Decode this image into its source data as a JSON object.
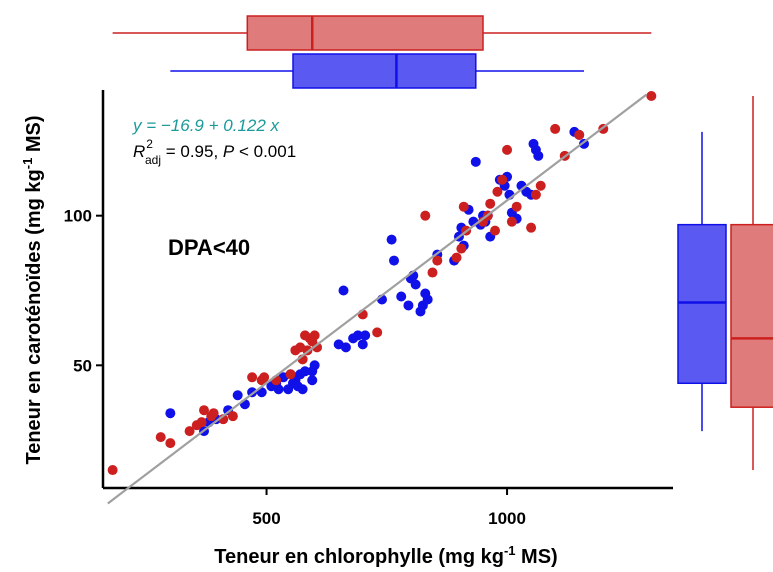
{
  "chart_data": {
    "type": "scatter",
    "xlabel": "Teneur en chlorophylle (mg kg-1 MS)",
    "ylabel": "Teneur en caroténoïdes (mg kg-1 MS)",
    "xlim": [
      160,
      1345
    ],
    "ylim": [
      9,
      142
    ],
    "xticks": [
      500,
      1000
    ],
    "yticks": [
      50,
      100
    ],
    "grid": false,
    "annotation": "DPA<40",
    "equation": "y = −16.9 + 0.122 x",
    "stats": {
      "r2_label": "R²adj = 0.95",
      "p_label": "P < 0.001"
    },
    "fit_line": {
      "intercept": -16.9,
      "slope": 0.122,
      "x_range": [
        170,
        1290
      ],
      "color": "#a0a0a0"
    },
    "series": [
      {
        "color": "#1010e8",
        "points": [
          [
            300,
            34
          ],
          [
            370,
            28
          ],
          [
            380,
            31
          ],
          [
            395,
            32
          ],
          [
            420,
            35
          ],
          [
            440,
            40
          ],
          [
            455,
            37
          ],
          [
            470,
            41
          ],
          [
            490,
            41
          ],
          [
            510,
            43
          ],
          [
            520,
            44
          ],
          [
            525,
            42
          ],
          [
            535,
            46
          ],
          [
            545,
            42
          ],
          [
            550,
            47
          ],
          [
            555,
            44
          ],
          [
            560,
            45
          ],
          [
            565,
            43
          ],
          [
            570,
            47
          ],
          [
            575,
            42
          ],
          [
            580,
            48
          ],
          [
            595,
            48
          ],
          [
            600,
            50
          ],
          [
            595,
            45
          ],
          [
            650,
            57
          ],
          [
            660,
            75
          ],
          [
            665,
            56
          ],
          [
            680,
            59
          ],
          [
            690,
            60
          ],
          [
            700,
            57
          ],
          [
            705,
            60
          ],
          [
            740,
            72
          ],
          [
            760,
            92
          ],
          [
            765,
            85
          ],
          [
            780,
            73
          ],
          [
            795,
            70
          ],
          [
            800,
            79
          ],
          [
            805,
            80
          ],
          [
            810,
            77
          ],
          [
            820,
            68
          ],
          [
            825,
            70
          ],
          [
            830,
            74
          ],
          [
            835,
            72
          ],
          [
            855,
            87
          ],
          [
            890,
            85
          ],
          [
            900,
            93
          ],
          [
            905,
            96
          ],
          [
            910,
            90
          ],
          [
            920,
            102
          ],
          [
            930,
            98
          ],
          [
            935,
            118
          ],
          [
            945,
            97
          ],
          [
            950,
            100
          ],
          [
            955,
            98
          ],
          [
            960,
            100
          ],
          [
            965,
            93
          ],
          [
            985,
            112
          ],
          [
            995,
            110
          ],
          [
            1000,
            113
          ],
          [
            1005,
            107
          ],
          [
            1010,
            101
          ],
          [
            1020,
            99
          ],
          [
            1030,
            110
          ],
          [
            1040,
            108
          ],
          [
            1050,
            107
          ],
          [
            1055,
            124
          ],
          [
            1060,
            122
          ],
          [
            1065,
            120
          ],
          [
            1140,
            128
          ],
          [
            1150,
            127
          ],
          [
            1160,
            124
          ]
        ]
      },
      {
        "color": "#cc2020",
        "points": [
          [
            180,
            15
          ],
          [
            280,
            26
          ],
          [
            300,
            24
          ],
          [
            340,
            28
          ],
          [
            355,
            30
          ],
          [
            365,
            31
          ],
          [
            370,
            35
          ],
          [
            385,
            33
          ],
          [
            390,
            34
          ],
          [
            410,
            32
          ],
          [
            430,
            33
          ],
          [
            470,
            46
          ],
          [
            490,
            45
          ],
          [
            495,
            46
          ],
          [
            520,
            45
          ],
          [
            550,
            47
          ],
          [
            560,
            55
          ],
          [
            570,
            56
          ],
          [
            575,
            52
          ],
          [
            580,
            60
          ],
          [
            585,
            55
          ],
          [
            590,
            59
          ],
          [
            595,
            58
          ],
          [
            600,
            60
          ],
          [
            605,
            56
          ],
          [
            700,
            67
          ],
          [
            730,
            61
          ],
          [
            830,
            100
          ],
          [
            845,
            81
          ],
          [
            855,
            85
          ],
          [
            895,
            86
          ],
          [
            905,
            89
          ],
          [
            910,
            103
          ],
          [
            915,
            95
          ],
          [
            950,
            98
          ],
          [
            960,
            100
          ],
          [
            965,
            104
          ],
          [
            975,
            95
          ],
          [
            980,
            108
          ],
          [
            990,
            112
          ],
          [
            1000,
            122
          ],
          [
            1010,
            98
          ],
          [
            1020,
            103
          ],
          [
            1050,
            96
          ],
          [
            1060,
            107
          ],
          [
            1070,
            110
          ],
          [
            1100,
            129
          ],
          [
            1120,
            120
          ],
          [
            1150,
            127
          ],
          [
            1200,
            129
          ],
          [
            1300,
            140
          ]
        ]
      }
    ],
    "marginal_boxplots": {
      "x_top": [
        {
          "color": "#cc2020",
          "min": 180,
          "q1": 460,
          "median": 595,
          "q3": 950,
          "max": 1300
        },
        {
          "color": "#1010e8",
          "min": 300,
          "q1": 555,
          "median": 770,
          "q3": 935,
          "max": 1160
        }
      ],
      "y_right": [
        {
          "color": "#1010e8",
          "min": 28,
          "q1": 44,
          "median": 71,
          "q3": 97,
          "max": 128
        },
        {
          "color": "#cc2020",
          "min": 15,
          "q1": 36,
          "median": 59,
          "q3": 97,
          "max": 140
        }
      ]
    }
  }
}
